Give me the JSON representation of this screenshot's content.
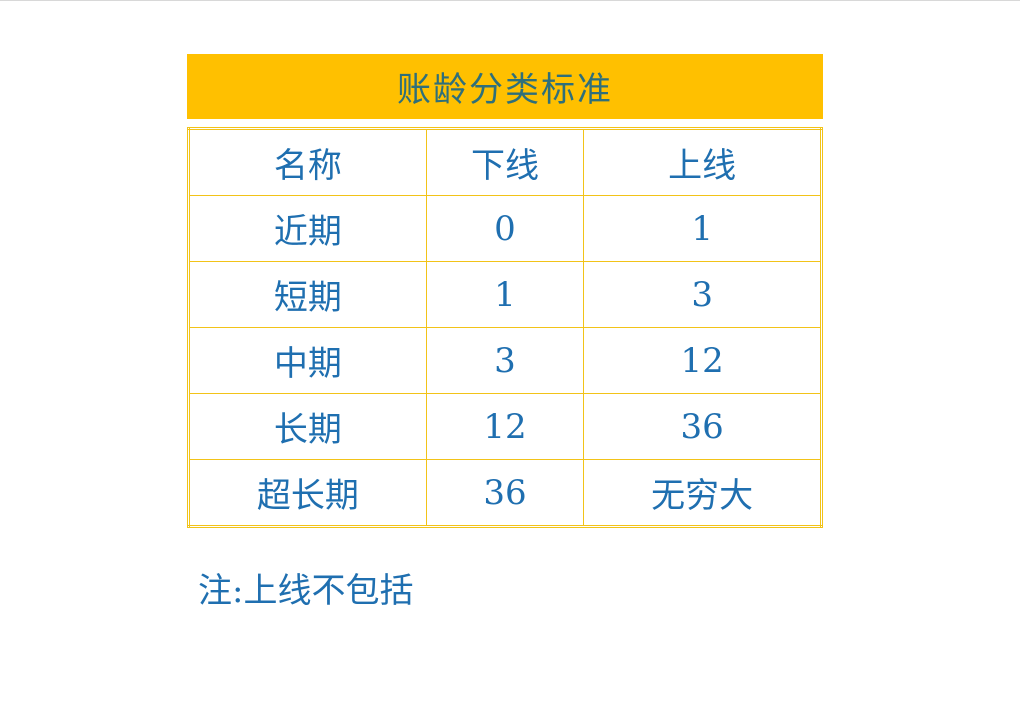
{
  "title": "账龄分类标准",
  "headers": [
    "名称",
    "下线",
    "上线"
  ],
  "rows": [
    [
      "近期",
      "0",
      "1"
    ],
    [
      "短期",
      "1",
      "3"
    ],
    [
      "中期",
      "3",
      "12"
    ],
    [
      "长期",
      "12",
      "36"
    ],
    [
      "超长期",
      "36",
      "无穷大"
    ]
  ],
  "note": "注:上线不包括",
  "colors": {
    "banner": "#FFC000",
    "text": "#1f6fb0",
    "border": "#f2c318"
  }
}
